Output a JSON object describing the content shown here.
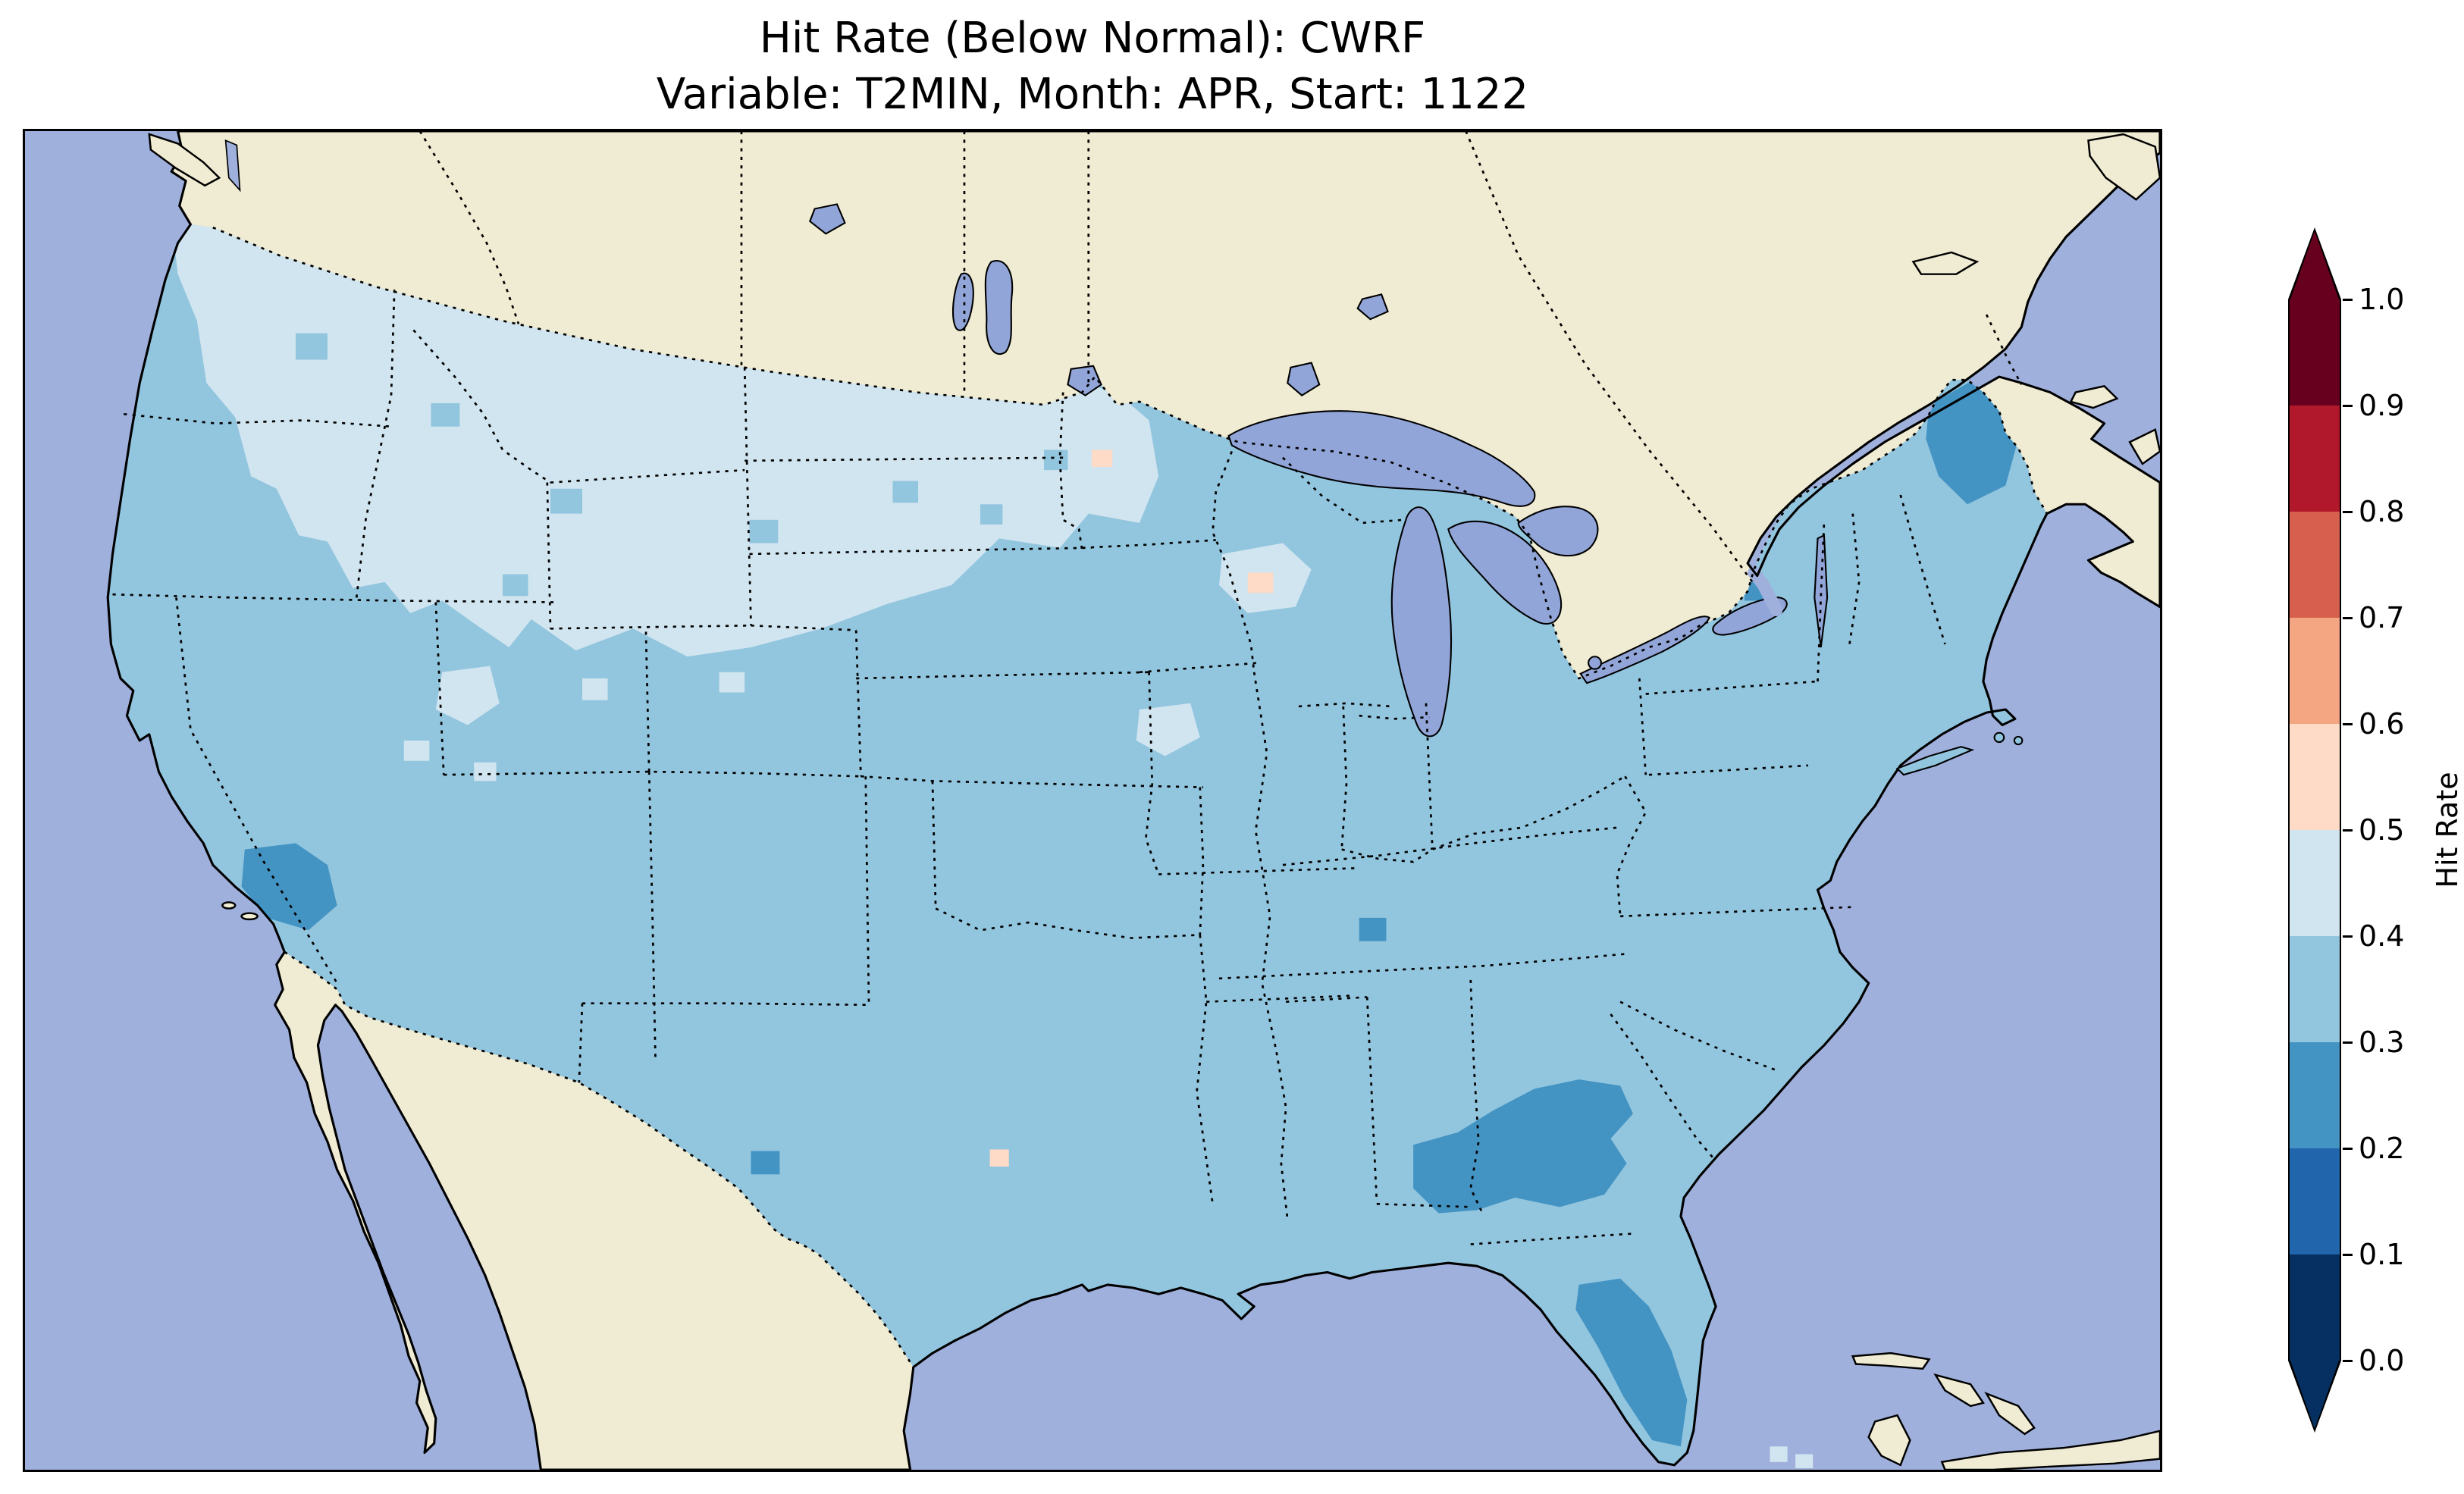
{
  "title": {
    "line1": "Hit Rate (Below Normal): CWRF",
    "line2": "Variable: T2MIN, Month: APR, Start: 1122"
  },
  "colorbar": {
    "label": "Hit Rate",
    "ticks": [
      "1.0",
      "0.9",
      "0.8",
      "0.7",
      "0.6",
      "0.5",
      "0.4",
      "0.3",
      "0.2",
      "0.1",
      "0.0"
    ],
    "over_color": "#67001f",
    "under_color": "#053061",
    "bins": [
      {
        "range": "0.9-1.0",
        "color": "#67001f"
      },
      {
        "range": "0.8-0.9",
        "color": "#b2182b"
      },
      {
        "range": "0.7-0.8",
        "color": "#d6604d"
      },
      {
        "range": "0.6-0.7",
        "color": "#f4a582"
      },
      {
        "range": "0.5-0.6",
        "color": "#fddbc7"
      },
      {
        "range": "0.4-0.5",
        "color": "#d1e5f0"
      },
      {
        "range": "0.3-0.4",
        "color": "#92c5de"
      },
      {
        "range": "0.2-0.3",
        "color": "#4393c3"
      },
      {
        "range": "0.1-0.2",
        "color": "#2166ac"
      },
      {
        "range": "0.0-0.1",
        "color": "#053061"
      }
    ]
  },
  "map": {
    "ocean_color": "#9fb0dc",
    "land_color": "#f0ecd3",
    "lake_color": "#92a5d8",
    "coastline_color": "#000000"
  },
  "chart_data": {
    "type": "heatmap",
    "title": "Hit Rate (Below Normal): CWRF",
    "subtitle": "Variable: T2MIN, Month: APR, Start: 1122",
    "colorbar_label": "Hit Rate",
    "colorbar_ticks": [
      0.0,
      0.1,
      0.2,
      0.3,
      0.4,
      0.5,
      0.6,
      0.7,
      0.8,
      0.9,
      1.0
    ],
    "value_range": [
      0,
      1
    ],
    "legend_position": "right",
    "region_values": [
      {
        "region": "Most of the contiguous United States",
        "hit_rate": "0.3-0.4"
      },
      {
        "region": "Northern Plains (Montana, Wyoming, Dakotas, western Minnesota) and eastern Washington",
        "hit_rate": "0.4-0.5"
      },
      {
        "region": "Central Georgia and eastern Alabama",
        "hit_rate": "0.2-0.3"
      },
      {
        "region": "Florida peninsula interior",
        "hit_rate": "0.2-0.3"
      },
      {
        "region": "Maine",
        "hit_rate": "0.2-0.3"
      },
      {
        "region": "Southeastern California",
        "hit_rate": "0.2-0.3"
      },
      {
        "region": "Scattered single cells (Tennessee, west Texas, southern Arizona, upstate New York)",
        "hit_rate": "0.2-0.3"
      },
      {
        "region": "Scattered cells (Wisconsin, Minnesota, east Texas)",
        "hit_rate": "0.5-0.6"
      }
    ]
  }
}
